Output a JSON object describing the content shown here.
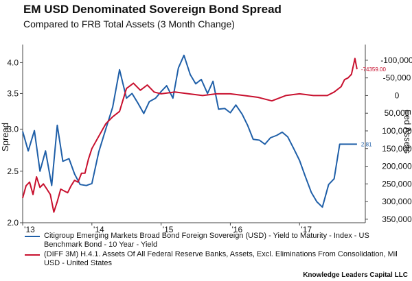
{
  "header": {
    "title": "EM USD Denominated Sovereign Bond Spread",
    "subtitle": "Compared to FRB Total Assets (3 Month Change)"
  },
  "footer": {
    "source": "Knowledge Leaders Capital LLC"
  },
  "colors": {
    "spread": "#1f5fa8",
    "assets": "#c8102e",
    "axis": "#444444"
  },
  "chart_data": {
    "type": "line",
    "x_tick_labels": [
      "'13",
      "'14",
      "'15",
      "'16",
      "'17"
    ],
    "x_ticks": [
      2013,
      2014,
      2015,
      2016,
      2017
    ],
    "xlim": [
      2013.0,
      2017.95
    ],
    "left_axis": {
      "label": "Spread",
      "scale": "log",
      "ylim": [
        2.0,
        4.2
      ],
      "ticks": [
        2.0,
        2.5,
        3.0,
        3.5,
        4.0
      ],
      "tick_labels": [
        "2.0",
        "2.5",
        "3.0",
        "3.5",
        "4.0"
      ]
    },
    "right_axis": {
      "label": "Fed Assets",
      "inverted": true,
      "ylim": [
        -125000,
        360000
      ],
      "ticks": [
        -100000,
        -50000,
        0,
        50000,
        100000,
        150000,
        200000,
        250000,
        300000,
        350000
      ],
      "tick_labels": [
        "-100,000",
        "-50,000",
        "0",
        "50,000",
        "100,000",
        "150,000",
        "200,000",
        "250,000",
        "300,000",
        "350,000"
      ]
    },
    "grid": false,
    "legend_position": "bottom",
    "series": [
      {
        "name": "Citigroup Emerging Markets Broad Bond Foreign Sovereign (USD) - Yield to Maturity - Index - US Benchmark Bond - 10 Year - Yield",
        "axis": "left",
        "end_label": "2.81",
        "x": [
          2013.0,
          2013.08,
          2013.17,
          2013.25,
          2013.33,
          2013.42,
          2013.5,
          2013.58,
          2013.67,
          2013.75,
          2013.83,
          2013.92,
          2014.0,
          2014.1,
          2014.2,
          2014.3,
          2014.4,
          2014.5,
          2014.58,
          2014.67,
          2014.75,
          2014.83,
          2014.92,
          2015.0,
          2015.08,
          2015.17,
          2015.25,
          2015.33,
          2015.42,
          2015.5,
          2015.58,
          2015.67,
          2015.75,
          2015.83,
          2015.92,
          2016.0,
          2016.08,
          2016.17,
          2016.25,
          2016.33,
          2016.42,
          2016.5,
          2016.58,
          2016.67,
          2016.75,
          2016.83,
          2016.92,
          2017.0,
          2017.08,
          2017.17,
          2017.25,
          2017.33,
          2017.42,
          2017.5,
          2017.58,
          2017.67,
          2017.75,
          2017.83
        ],
        "values": [
          2.97,
          2.73,
          2.98,
          2.5,
          2.73,
          2.35,
          3.05,
          2.61,
          2.64,
          2.47,
          2.36,
          2.35,
          2.37,
          2.72,
          3.0,
          3.3,
          3.88,
          3.43,
          3.5,
          3.35,
          3.21,
          3.38,
          3.43,
          3.53,
          3.62,
          3.43,
          3.91,
          4.13,
          3.8,
          3.65,
          3.72,
          3.5,
          3.69,
          3.27,
          3.28,
          3.22,
          3.33,
          3.2,
          3.05,
          2.87,
          2.86,
          2.81,
          2.89,
          2.92,
          2.96,
          2.9,
          2.75,
          2.62,
          2.45,
          2.28,
          2.19,
          2.14,
          2.36,
          2.42,
          2.81,
          2.81,
          2.81,
          2.81
        ]
      },
      {
        "name": "(DIFF 3M) H.4.1. Assets Of All Federal Reserve Banks, Assets, Excl. Eliminations From Consolidation, Mil USD - United States",
        "axis": "right",
        "end_label": "-74359.00",
        "x": [
          2013.0,
          2013.05,
          2013.1,
          2013.15,
          2013.2,
          2013.25,
          2013.3,
          2013.35,
          2013.4,
          2013.45,
          2013.5,
          2013.55,
          2013.6,
          2013.65,
          2013.7,
          2013.75,
          2013.8,
          2013.85,
          2013.9,
          2013.95,
          2014.0,
          2014.1,
          2014.2,
          2014.3,
          2014.4,
          2014.5,
          2014.6,
          2014.7,
          2014.8,
          2014.9,
          2015.0,
          2015.2,
          2015.4,
          2015.6,
          2015.8,
          2016.0,
          2016.2,
          2016.4,
          2016.6,
          2016.8,
          2017.0,
          2017.2,
          2017.4,
          2017.5,
          2017.6,
          2017.65,
          2017.7,
          2017.75,
          2017.8,
          2017.83
        ],
        "values": [
          290000,
          255000,
          245000,
          280000,
          230000,
          260000,
          250000,
          265000,
          280000,
          330000,
          300000,
          265000,
          270000,
          275000,
          255000,
          240000,
          245000,
          220000,
          220000,
          180000,
          150000,
          115000,
          80000,
          60000,
          45000,
          -20000,
          -35000,
          -15000,
          -30000,
          -10000,
          -5000,
          -10000,
          -5000,
          0,
          -5000,
          -5000,
          0,
          5000,
          15000,
          0,
          -5000,
          0,
          0,
          -10000,
          -25000,
          -45000,
          -50000,
          -60000,
          -105000,
          -74359
        ]
      }
    ]
  }
}
